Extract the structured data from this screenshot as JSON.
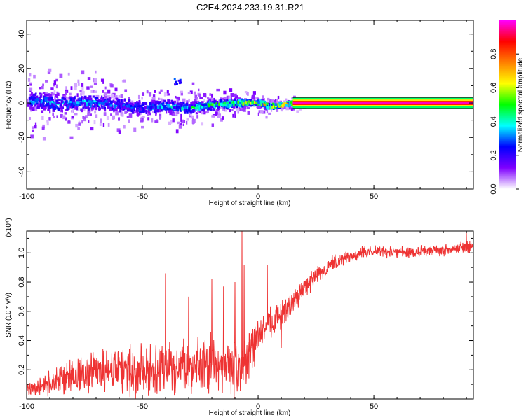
{
  "title": "C2E4.2024.233.19.31.R21",
  "chart_data": [
    {
      "type": "heatmap",
      "xlabel": "Height of straight line (km)",
      "ylabel": "Frequency (Hz)",
      "xlim": [
        -100,
        93
      ],
      "ylim": [
        -50,
        48
      ],
      "x_ticks": [
        -100,
        -50,
        0,
        50
      ],
      "y_ticks": [
        -40,
        -20,
        0,
        20,
        40
      ],
      "colorbar": {
        "label": "Normalized spectral amplitude",
        "range": [
          0.0,
          1.0
        ],
        "ticks": [
          0.0,
          0.2,
          0.4,
          0.6,
          0.8
        ],
        "colors": [
          "#ffffff",
          "#7f00ff",
          "#0000ff",
          "#00ffff",
          "#00ff00",
          "#ffff00",
          "#ff7f00",
          "#ff0000",
          "#ff00ff"
        ]
      },
      "ridge": [
        {
          "x": -100,
          "freq": 1,
          "width": 10,
          "amp": 0.35
        },
        {
          "x": -90,
          "freq": 0,
          "width": 9,
          "amp": 0.4
        },
        {
          "x": -80,
          "freq": 0,
          "width": 8,
          "amp": 0.4
        },
        {
          "x": -70,
          "freq": 0,
          "width": 8,
          "amp": 0.4
        },
        {
          "x": -60,
          "freq": -1,
          "width": 7,
          "amp": 0.35
        },
        {
          "x": -50,
          "freq": -3,
          "width": 7,
          "amp": 0.35
        },
        {
          "x": -40,
          "freq": -2,
          "width": 6,
          "amp": 0.4
        },
        {
          "x": -30,
          "freq": -3,
          "width": 6,
          "amp": 0.45
        },
        {
          "x": -20,
          "freq": -1,
          "width": 5,
          "amp": 0.55
        },
        {
          "x": -10,
          "freq": 0,
          "width": 4,
          "amp": 0.6
        },
        {
          "x": 0,
          "freq": 0,
          "width": 3,
          "amp": 0.75
        },
        {
          "x": 5,
          "freq": -2,
          "width": 3,
          "amp": 0.8
        },
        {
          "x": 15,
          "freq": 0,
          "width": 2,
          "amp": 0.9
        },
        {
          "x": 50,
          "freq": 0,
          "width": 2,
          "amp": 0.95
        },
        {
          "x": 93,
          "freq": 0,
          "width": 2,
          "amp": 0.95
        }
      ],
      "blob": {
        "x": -35,
        "freq": 12,
        "amp": 0.3
      }
    },
    {
      "type": "line",
      "xlabel": "Height of straight line (km)",
      "ylabel": "SNR (10 * v/v)",
      "y_multiplier": "(x10⁴)",
      "xlim": [
        -100,
        93
      ],
      "ylim": [
        0,
        1.15
      ],
      "x_ticks": [
        -100,
        -50,
        0,
        50
      ],
      "y_ticks": [
        0.2,
        0.4,
        0.6,
        0.8,
        1.0
      ],
      "series": [
        {
          "color": "#ee3333",
          "x": [
            -100,
            -95,
            -90,
            -85,
            -80,
            -75,
            -70,
            -65,
            -60,
            -55,
            -50,
            -45,
            -40,
            -35,
            -30,
            -25,
            -20,
            -15,
            -10,
            -5,
            0,
            5,
            10,
            15,
            20,
            25,
            30,
            35,
            40,
            45,
            50,
            55,
            60,
            65,
            70,
            75,
            80,
            85,
            90,
            93
          ],
          "base": [
            0.06,
            0.08,
            0.1,
            0.13,
            0.15,
            0.17,
            0.18,
            0.19,
            0.19,
            0.2,
            0.2,
            0.2,
            0.21,
            0.22,
            0.23,
            0.23,
            0.23,
            0.22,
            0.22,
            0.26,
            0.42,
            0.52,
            0.58,
            0.66,
            0.76,
            0.84,
            0.9,
            0.95,
            0.98,
            1.0,
            1.01,
            1.01,
            1.01,
            1.0,
            1.01,
            1.02,
            1.02,
            1.03,
            1.04,
            1.04
          ],
          "noise": [
            0.05,
            0.07,
            0.1,
            0.14,
            0.16,
            0.18,
            0.19,
            0.19,
            0.19,
            0.2,
            0.2,
            0.21,
            0.22,
            0.23,
            0.24,
            0.24,
            0.24,
            0.24,
            0.24,
            0.2,
            0.16,
            0.13,
            0.12,
            0.1,
            0.09,
            0.08,
            0.07,
            0.06,
            0.05,
            0.05,
            0.05,
            0.05,
            0.05,
            0.05,
            0.05,
            0.05,
            0.05,
            0.05,
            0.05,
            0.05
          ],
          "spikes": [
            {
              "x": -40,
              "y": 0.86
            },
            {
              "x": -30,
              "y": 0.7
            },
            {
              "x": -20,
              "y": 0.82
            },
            {
              "x": -15,
              "y": 0.77
            },
            {
              "x": -10,
              "y": 0.8
            },
            {
              "x": -7,
              "y": 1.15
            },
            {
              "x": -6,
              "y": 0.92
            },
            {
              "x": 4,
              "y": 0.92
            },
            {
              "x": 10,
              "y": 0.35
            },
            {
              "x": 90,
              "y": 1.15
            }
          ]
        }
      ]
    }
  ]
}
